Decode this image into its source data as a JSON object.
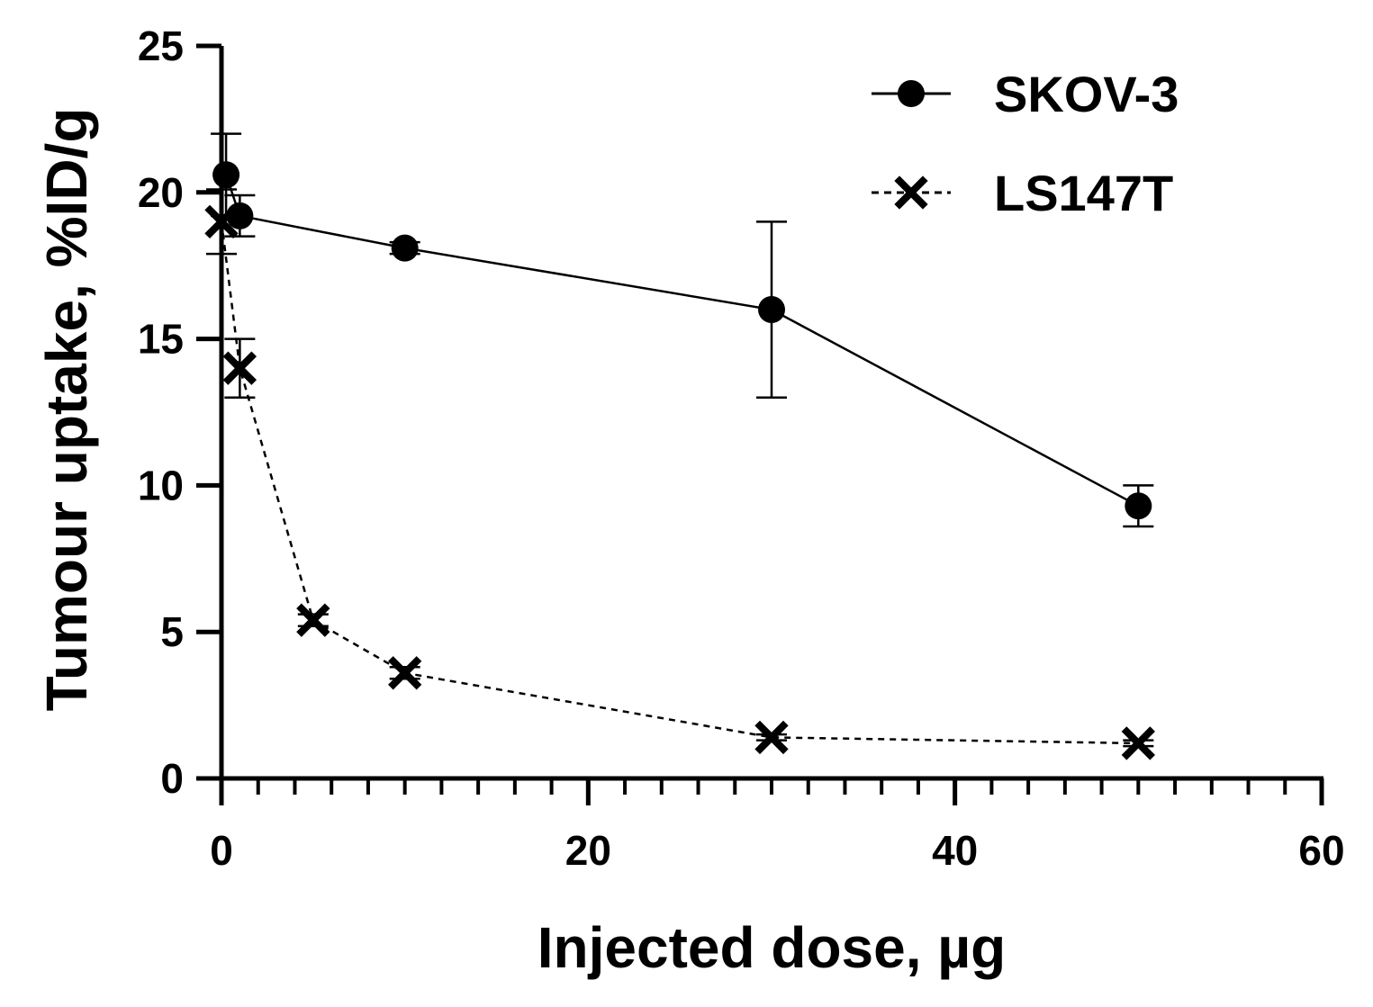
{
  "chart_data": {
    "type": "line",
    "title": "",
    "xlabel": "Injected dose, µg",
    "ylabel": "Tumour uptake, %ID/g",
    "xlim": [
      0,
      60
    ],
    "ylim": [
      0,
      25
    ],
    "xticks": [
      0,
      20,
      40,
      60
    ],
    "xtick_labels": [
      "0",
      "20",
      "40",
      "60"
    ],
    "yticks": [
      0,
      5,
      10,
      15,
      20,
      25
    ],
    "ytick_labels": [
      "0",
      "5",
      "10",
      "15",
      "20",
      "25"
    ],
    "x_minor_step": 2,
    "grid": false,
    "legend_position": "top-right",
    "series": [
      {
        "name": "SKOV-3",
        "marker": "circle",
        "line_style": "solid",
        "x": [
          0.25,
          1,
          10,
          30,
          50
        ],
        "y": [
          20.6,
          19.2,
          18.1,
          16.0,
          9.3
        ],
        "error": [
          1.4,
          0.7,
          0.2,
          3.0,
          0.7
        ]
      },
      {
        "name": "LS147T",
        "marker": "x",
        "line_style": "dashed",
        "x": [
          0,
          1,
          5,
          10,
          30,
          50
        ],
        "y": [
          19.0,
          14.0,
          5.4,
          3.6,
          1.4,
          1.2
        ],
        "error": [
          1.1,
          1.0,
          0.2,
          0.2,
          0.1,
          0.1
        ]
      }
    ]
  }
}
